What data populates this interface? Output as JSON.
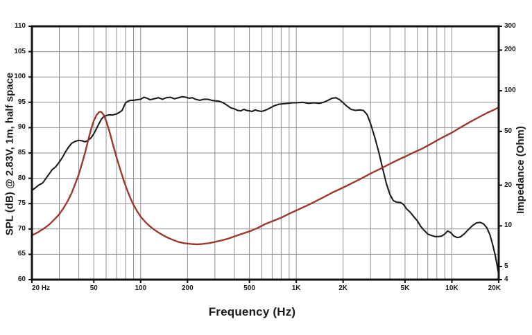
{
  "chart_data": {
    "type": "line",
    "title": "",
    "xlabel": "Frequency (Hz)",
    "ylabel_left": "SPL (dB) @ 2.83V, 1m, half space",
    "ylabel_right": "Impedance (Ohm)",
    "x_scale": "log",
    "x_range": [
      20,
      20000
    ],
    "y_left_range": [
      60,
      110
    ],
    "y_left_step": 5,
    "y_right_scale": "log",
    "y_right_range": [
      4,
      300
    ],
    "grid": true,
    "legend": "none",
    "x_ticks": [
      {
        "value": 20,
        "label": "20 Hz",
        "align": "left"
      },
      {
        "value": 50,
        "label": "50",
        "align": "center"
      },
      {
        "value": 100,
        "label": "100",
        "align": "center"
      },
      {
        "value": 200,
        "label": "200",
        "align": "center"
      },
      {
        "value": 500,
        "label": "500",
        "align": "center"
      },
      {
        "value": 1000,
        "label": "1K",
        "align": "center"
      },
      {
        "value": 2000,
        "label": "2K",
        "align": "center"
      },
      {
        "value": 5000,
        "label": "5K",
        "align": "center"
      },
      {
        "value": 10000,
        "label": "10K",
        "align": "center"
      },
      {
        "value": 20000,
        "label": "20K",
        "align": "right"
      }
    ],
    "y_left_ticks": [
      110,
      105,
      100,
      95,
      90,
      85,
      80,
      75,
      70,
      65,
      60
    ],
    "y_right_ticks": [
      300,
      200,
      100,
      50,
      20,
      10,
      5,
      4
    ],
    "series": [
      {
        "name": "SPL",
        "axis": "left",
        "color": "#1c1c1c",
        "width": 2.1,
        "points": [
          [
            20,
            77.6
          ],
          [
            21,
            78.1
          ],
          [
            22,
            78.6
          ],
          [
            23.5,
            79.1
          ],
          [
            24.5,
            79.9
          ],
          [
            26,
            81.0
          ],
          [
            27,
            81.7
          ],
          [
            28.5,
            82.3
          ],
          [
            30,
            83.2
          ],
          [
            31.5,
            84.2
          ],
          [
            33,
            85.3
          ],
          [
            34.5,
            86.2
          ],
          [
            36,
            86.9
          ],
          [
            38,
            87.3
          ],
          [
            40,
            87.5
          ],
          [
            42,
            87.4
          ],
          [
            44,
            87.2
          ],
          [
            46,
            87.5
          ],
          [
            48,
            88.0
          ],
          [
            50,
            88.8
          ],
          [
            52,
            89.8
          ],
          [
            54,
            90.8
          ],
          [
            56,
            91.7
          ],
          [
            58,
            92.2
          ],
          [
            62,
            92.5
          ],
          [
            66,
            92.5
          ],
          [
            70,
            92.7
          ],
          [
            73,
            93.0
          ],
          [
            76,
            93.4
          ],
          [
            78,
            94.2
          ],
          [
            80,
            94.9
          ],
          [
            83,
            95.2
          ],
          [
            86,
            95.4
          ],
          [
            90,
            95.4
          ],
          [
            95,
            95.5
          ],
          [
            100,
            95.6
          ],
          [
            105,
            96.0
          ],
          [
            110,
            95.8
          ],
          [
            115,
            95.5
          ],
          [
            122,
            95.7
          ],
          [
            130,
            95.9
          ],
          [
            138,
            95.6
          ],
          [
            146,
            95.9
          ],
          [
            155,
            96.0
          ],
          [
            165,
            95.7
          ],
          [
            175,
            95.9
          ],
          [
            185,
            96.1
          ],
          [
            195,
            96.0
          ],
          [
            205,
            95.8
          ],
          [
            215,
            95.9
          ],
          [
            225,
            95.6
          ],
          [
            240,
            95.4
          ],
          [
            255,
            95.6
          ],
          [
            270,
            95.6
          ],
          [
            285,
            95.4
          ],
          [
            300,
            95.3
          ],
          [
            320,
            95.2
          ],
          [
            340,
            94.9
          ],
          [
            360,
            94.4
          ],
          [
            380,
            93.9
          ],
          [
            400,
            93.7
          ],
          [
            420,
            93.4
          ],
          [
            440,
            93.3
          ],
          [
            460,
            93.6
          ],
          [
            480,
            93.4
          ],
          [
            500,
            93.3
          ],
          [
            520,
            93.2
          ],
          [
            545,
            93.5
          ],
          [
            570,
            93.3
          ],
          [
            600,
            93.2
          ],
          [
            640,
            93.5
          ],
          [
            680,
            93.9
          ],
          [
            720,
            94.3
          ],
          [
            770,
            94.6
          ],
          [
            820,
            94.7
          ],
          [
            880,
            94.8
          ],
          [
            950,
            94.9
          ],
          [
            1000,
            94.9
          ],
          [
            1100,
            95.0
          ],
          [
            1200,
            94.8
          ],
          [
            1300,
            94.9
          ],
          [
            1400,
            94.8
          ],
          [
            1500,
            95.0
          ],
          [
            1600,
            95.4
          ],
          [
            1700,
            95.8
          ],
          [
            1800,
            95.9
          ],
          [
            1900,
            95.5
          ],
          [
            2000,
            94.9
          ],
          [
            2100,
            94.3
          ],
          [
            2250,
            93.6
          ],
          [
            2400,
            93.4
          ],
          [
            2550,
            93.5
          ],
          [
            2700,
            93.4
          ],
          [
            2850,
            92.6
          ],
          [
            3000,
            90.8
          ],
          [
            3200,
            88.0
          ],
          [
            3400,
            85.0
          ],
          [
            3600,
            81.8
          ],
          [
            3800,
            78.9
          ],
          [
            4000,
            76.8
          ],
          [
            4200,
            75.6
          ],
          [
            4400,
            75.3
          ],
          [
            4700,
            75.2
          ],
          [
            4900,
            74.8
          ],
          [
            5100,
            74.0
          ],
          [
            5400,
            73.3
          ],
          [
            5700,
            72.4
          ],
          [
            6000,
            71.6
          ],
          [
            6300,
            70.5
          ],
          [
            6600,
            69.8
          ],
          [
            7000,
            69.0
          ],
          [
            7400,
            68.7
          ],
          [
            7800,
            68.5
          ],
          [
            8200,
            68.5
          ],
          [
            8600,
            68.6
          ],
          [
            9000,
            69.0
          ],
          [
            9400,
            69.6
          ],
          [
            9800,
            69.3
          ],
          [
            10300,
            68.6
          ],
          [
            10800,
            68.3
          ],
          [
            11300,
            68.4
          ],
          [
            12000,
            69.0
          ],
          [
            12800,
            69.9
          ],
          [
            13600,
            70.7
          ],
          [
            14400,
            71.2
          ],
          [
            15200,
            71.3
          ],
          [
            16000,
            71.0
          ],
          [
            16800,
            70.2
          ],
          [
            17600,
            68.8
          ],
          [
            18300,
            66.9
          ],
          [
            19000,
            64.8
          ],
          [
            19500,
            63.0
          ],
          [
            20000,
            61.0
          ]
        ]
      },
      {
        "name": "Impedance",
        "axis": "right",
        "color": "#9d382e",
        "width": 2.4,
        "points": [
          [
            20,
            8.5
          ],
          [
            22,
            9.0
          ],
          [
            24,
            9.6
          ],
          [
            26,
            10.3
          ],
          [
            28,
            11.2
          ],
          [
            30,
            12.2
          ],
          [
            32,
            13.6
          ],
          [
            34,
            15.3
          ],
          [
            36,
            17.5
          ],
          [
            38,
            20.5
          ],
          [
            40,
            24
          ],
          [
            42,
            29
          ],
          [
            44,
            35
          ],
          [
            46,
            43
          ],
          [
            48,
            52
          ],
          [
            50,
            60
          ],
          [
            52,
            66
          ],
          [
            54,
            69.5
          ],
          [
            55,
            70
          ],
          [
            56,
            69.5
          ],
          [
            58,
            66
          ],
          [
            60,
            60
          ],
          [
            63,
            50
          ],
          [
            66,
            41
          ],
          [
            70,
            32
          ],
          [
            74,
            26
          ],
          [
            78,
            21.5
          ],
          [
            82,
            18.3
          ],
          [
            86,
            16.0
          ],
          [
            90,
            14.3
          ],
          [
            95,
            12.8
          ],
          [
            100,
            11.7
          ],
          [
            107,
            10.7
          ],
          [
            115,
            9.9
          ],
          [
            125,
            9.2
          ],
          [
            135,
            8.7
          ],
          [
            145,
            8.3
          ],
          [
            160,
            7.9
          ],
          [
            175,
            7.6
          ],
          [
            190,
            7.45
          ],
          [
            210,
            7.35
          ],
          [
            230,
            7.3
          ],
          [
            250,
            7.35
          ],
          [
            275,
            7.45
          ],
          [
            300,
            7.6
          ],
          [
            330,
            7.8
          ],
          [
            360,
            8.0
          ],
          [
            400,
            8.35
          ],
          [
            450,
            8.75
          ],
          [
            500,
            9.1
          ],
          [
            560,
            9.6
          ],
          [
            630,
            10.3
          ],
          [
            700,
            10.8
          ],
          [
            800,
            11.5
          ],
          [
            900,
            12.3
          ],
          [
            1000,
            13.0
          ],
          [
            1150,
            14.0
          ],
          [
            1300,
            15.0
          ],
          [
            1500,
            16.3
          ],
          [
            1700,
            17.6
          ],
          [
            2000,
            19.2
          ],
          [
            2300,
            20.8
          ],
          [
            2600,
            22.3
          ],
          [
            3000,
            24.4
          ],
          [
            3500,
            26.6
          ],
          [
            4000,
            28.8
          ],
          [
            4500,
            30.8
          ],
          [
            5000,
            32.5
          ],
          [
            5700,
            35.0
          ],
          [
            6500,
            37.5
          ],
          [
            7500,
            41.0
          ],
          [
            8500,
            44.5
          ],
          [
            10000,
            49.0
          ],
          [
            11500,
            54.0
          ],
          [
            13000,
            58.5
          ],
          [
            15000,
            64.0
          ],
          [
            17000,
            69.0
          ],
          [
            18500,
            72.0
          ],
          [
            20000,
            75.5
          ]
        ]
      }
    ],
    "layout": {
      "plot_left": 46,
      "plot_top": 38,
      "plot_right": 719,
      "plot_bottom": 404,
      "grid_color": "#8f8f8f",
      "frame_color": "#111111",
      "background": "#ffffff"
    }
  }
}
